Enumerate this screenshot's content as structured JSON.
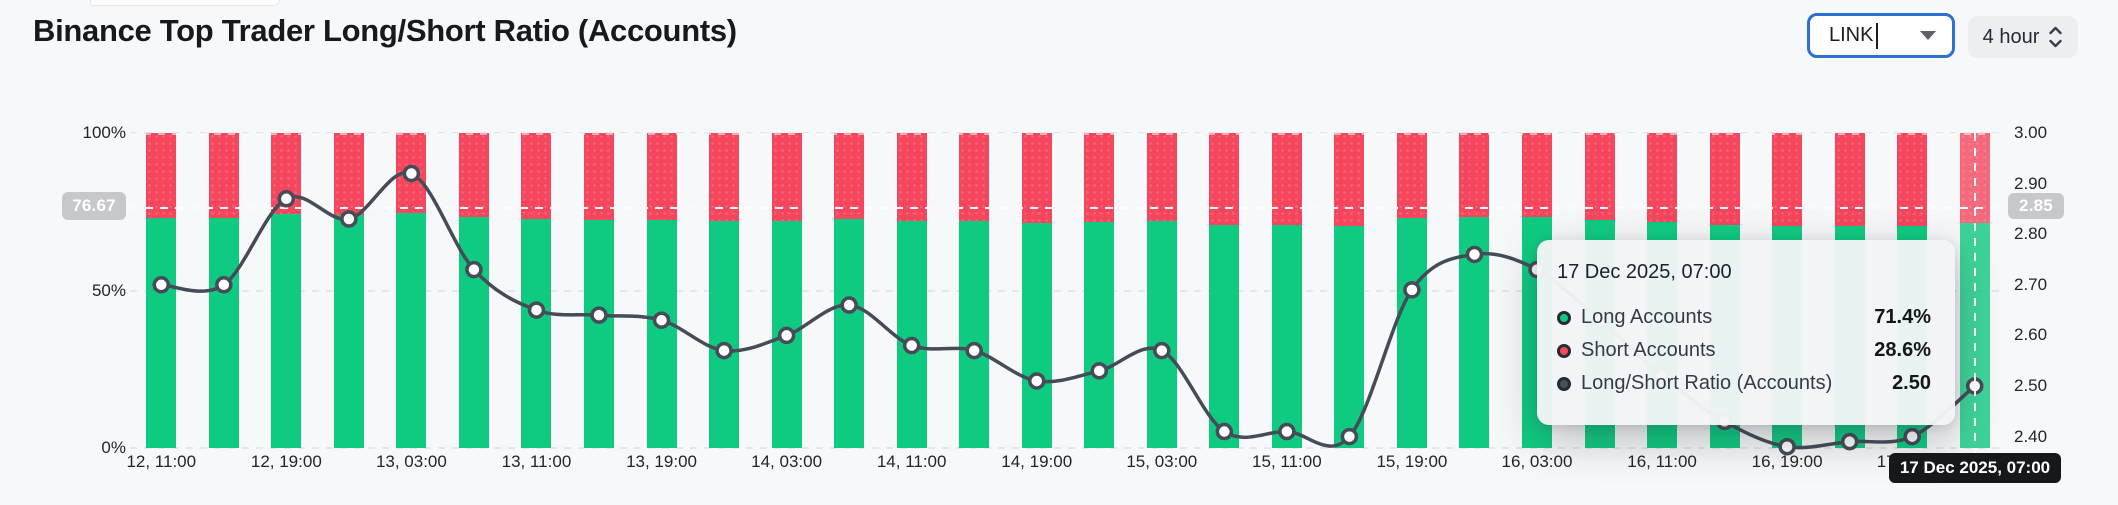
{
  "header": {
    "title": "Binance Top Trader Long/Short Ratio (Accounts)",
    "symbol_select": {
      "value": "LINK"
    },
    "interval_select": {
      "value": "4 hour"
    }
  },
  "chart_data": {
    "type": "bar",
    "subtype": "stacked-percent-bars-with-line",
    "categories": [
      "12, 11:00",
      "12, 15:00",
      "12, 19:00",
      "12, 23:00",
      "13, 03:00",
      "13, 07:00",
      "13, 11:00",
      "13, 15:00",
      "13, 19:00",
      "13, 23:00",
      "14, 03:00",
      "14, 07:00",
      "14, 11:00",
      "14, 15:00",
      "14, 19:00",
      "14, 23:00",
      "15, 03:00",
      "15, 07:00",
      "15, 11:00",
      "15, 15:00",
      "15, 19:00",
      "15, 23:00",
      "16, 03:00",
      "16, 07:00",
      "16, 11:00",
      "16, 15:00",
      "16, 19:00",
      "16, 23:00",
      "17, 03:00",
      "17, 07:00"
    ],
    "x_tick_labels": [
      "12, 11:00",
      "12, 19:00",
      "13, 03:00",
      "13, 11:00",
      "13, 19:00",
      "14, 03:00",
      "14, 11:00",
      "14, 19:00",
      "15, 03:00",
      "15, 11:00",
      "15, 19:00",
      "16, 03:00",
      "16, 11:00",
      "16, 19:00",
      "17, 03:00"
    ],
    "series": [
      {
        "name": "Long Accounts",
        "type": "bar",
        "color": "#0fcb81",
        "values": [
          73.0,
          73.0,
          74.2,
          73.9,
          74.5,
          73.2,
          72.6,
          72.5,
          72.5,
          72.0,
          72.2,
          72.7,
          72.1,
          72.0,
          71.5,
          71.7,
          72.0,
          70.7,
          70.7,
          70.6,
          72.9,
          73.4,
          73.2,
          72.5,
          71.6,
          70.8,
          70.4,
          70.5,
          70.6,
          71.4
        ]
      },
      {
        "name": "Short Accounts",
        "type": "bar",
        "color": "#f5465d",
        "values": [
          27.0,
          27.0,
          25.8,
          26.1,
          25.5,
          26.8,
          27.4,
          27.5,
          27.5,
          28.0,
          27.8,
          27.3,
          27.9,
          28.0,
          28.5,
          28.3,
          28.0,
          29.3,
          29.3,
          29.4,
          27.1,
          26.6,
          26.8,
          27.5,
          28.4,
          29.2,
          29.6,
          29.5,
          29.4,
          28.6
        ]
      },
      {
        "name": "Long/Short Ratio (Accounts)",
        "type": "line",
        "color": "#454b57",
        "values": [
          2.7,
          2.7,
          2.87,
          2.83,
          2.92,
          2.73,
          2.65,
          2.64,
          2.63,
          2.57,
          2.6,
          2.66,
          2.58,
          2.57,
          2.51,
          2.53,
          2.57,
          2.41,
          2.41,
          2.4,
          2.69,
          2.76,
          2.73,
          2.63,
          2.52,
          2.43,
          2.38,
          2.39,
          2.4,
          2.5
        ]
      }
    ],
    "left_axis": {
      "ticks": [
        "100%",
        "50%",
        "0%"
      ],
      "range": [
        0,
        100
      ]
    },
    "right_axis": {
      "ticks": [
        "3.00",
        "2.90",
        "2.80",
        "2.70",
        "2.60",
        "2.50",
        "2.40"
      ],
      "range_top": 3.0,
      "per_tick": 0.1
    },
    "grid": "dashed",
    "hovered_index": 29,
    "crosshair": {
      "x_label": "17 Dec 2025, 07:00",
      "y_left_label": "76.67",
      "y_right_label": "2.85",
      "y_left_value": 76.67,
      "y_right_value": 2.85
    }
  },
  "tooltip": {
    "title": "17 Dec 2025, 07:00",
    "rows": [
      {
        "label": "Long Accounts",
        "value": "71.4%",
        "color": "#0fcb81"
      },
      {
        "label": "Short Accounts",
        "value": "28.6%",
        "color": "#f5465d"
      },
      {
        "label": "Long/Short Ratio (Accounts)",
        "value": "2.50",
        "color": "#4a5058"
      }
    ]
  }
}
